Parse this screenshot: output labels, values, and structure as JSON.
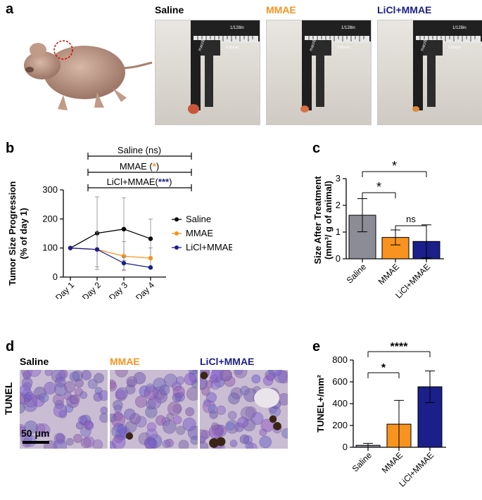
{
  "panels": {
    "a": "a",
    "b": "b",
    "c": "c",
    "d": "d",
    "e": "e"
  },
  "colors": {
    "saline": "#000000",
    "mmae": "#f7931e",
    "licl": "#1b1f8a",
    "saline_bar": "#8c8c96"
  },
  "photos": [
    {
      "label": "Saline",
      "color": "#000000"
    },
    {
      "label": "MMAE",
      "color": "#f7931e"
    },
    {
      "label": "LiCl+MMAE",
      "color": "#1b1f8a"
    }
  ],
  "caliper_text": {
    "brand": "macrilan",
    "scale": "1/128in",
    "unit": "0.05mm"
  },
  "histology": [
    {
      "label": "Saline",
      "color": "#000000"
    },
    {
      "label": "MMAE",
      "color": "#f7931e"
    },
    {
      "label": "LiCl+MMAE",
      "color": "#1b1f8a"
    }
  ],
  "tunel_label": "TUNEL",
  "scale_bar": "50 μm",
  "chart_data": [
    {
      "type": "line",
      "panel": "b",
      "ylabel": "Tumor Size Progression (% of day 1)",
      "ylabel_lines": [
        "Tumor Size Progression",
        "(% of day 1)"
      ],
      "categories": [
        "Day 1",
        "Day 2",
        "Day 3",
        "Day 4"
      ],
      "ylim": [
        0,
        300
      ],
      "yticks": [
        0,
        100,
        200,
        300
      ],
      "series": [
        {
          "name": "Saline",
          "color": "#000000",
          "values": [
            100,
            151,
            165,
            132
          ],
          "errors": [
            0,
            125,
            108,
            68
          ]
        },
        {
          "name": "MMAE",
          "color": "#f7931e",
          "values": [
            100,
            95,
            72,
            65
          ],
          "errors": [
            0,
            60,
            50,
            35
          ]
        },
        {
          "name": "LiCl+MMAE",
          "color": "#1b1f8a",
          "values": [
            100,
            95,
            48,
            33
          ],
          "errors": [
            0,
            0,
            22,
            0
          ]
        }
      ],
      "annotations": [
        {
          "prefix": "Saline (ns)",
          "mark": "",
          "suffix": "",
          "color": "#000000"
        },
        {
          "prefix": "MMAE (",
          "mark": "*",
          "suffix": ")",
          "color": "#f7931e"
        },
        {
          "prefix": "LiCl+MMAE(",
          "mark": "***",
          "suffix": ")",
          "color": "#1b1f8a"
        }
      ]
    },
    {
      "type": "bar",
      "panel": "c",
      "ylabel_lines": [
        "Size After Treatment",
        "(mm³/ g of animal)"
      ],
      "categories": [
        "Saline",
        "MMAE",
        "LiCl+MMAE"
      ],
      "values": [
        1.63,
        0.8,
        0.65
      ],
      "errors": [
        0.62,
        0.28,
        0.62
      ],
      "colors": [
        "#8c8c96",
        "#f7931e",
        "#1b1f8a"
      ],
      "ylim": [
        0,
        3
      ],
      "yticks": [
        "0",
        "1",
        "2",
        "3"
      ],
      "significance": [
        {
          "from": 0,
          "to": 1,
          "label": "*"
        },
        {
          "from": 0,
          "to": 2,
          "label": "*"
        },
        {
          "from": 1,
          "to": 2,
          "label": "ns"
        }
      ]
    },
    {
      "type": "bar",
      "panel": "e",
      "ylabel": "TUNEL+/mm²",
      "categories": [
        "Saline",
        "MMAE",
        "LiCl+MMAE"
      ],
      "values": [
        18,
        212,
        555
      ],
      "errors": [
        18,
        218,
        145
      ],
      "colors": [
        "#8c8c96",
        "#f7931e",
        "#1b1f8a"
      ],
      "ylim": [
        0,
        800
      ],
      "yticks": [
        "0",
        "200",
        "400",
        "600",
        "800"
      ],
      "significance": [
        {
          "from": 0,
          "to": 1,
          "label": "*"
        },
        {
          "from": 0,
          "to": 2,
          "label": "****"
        }
      ]
    }
  ]
}
